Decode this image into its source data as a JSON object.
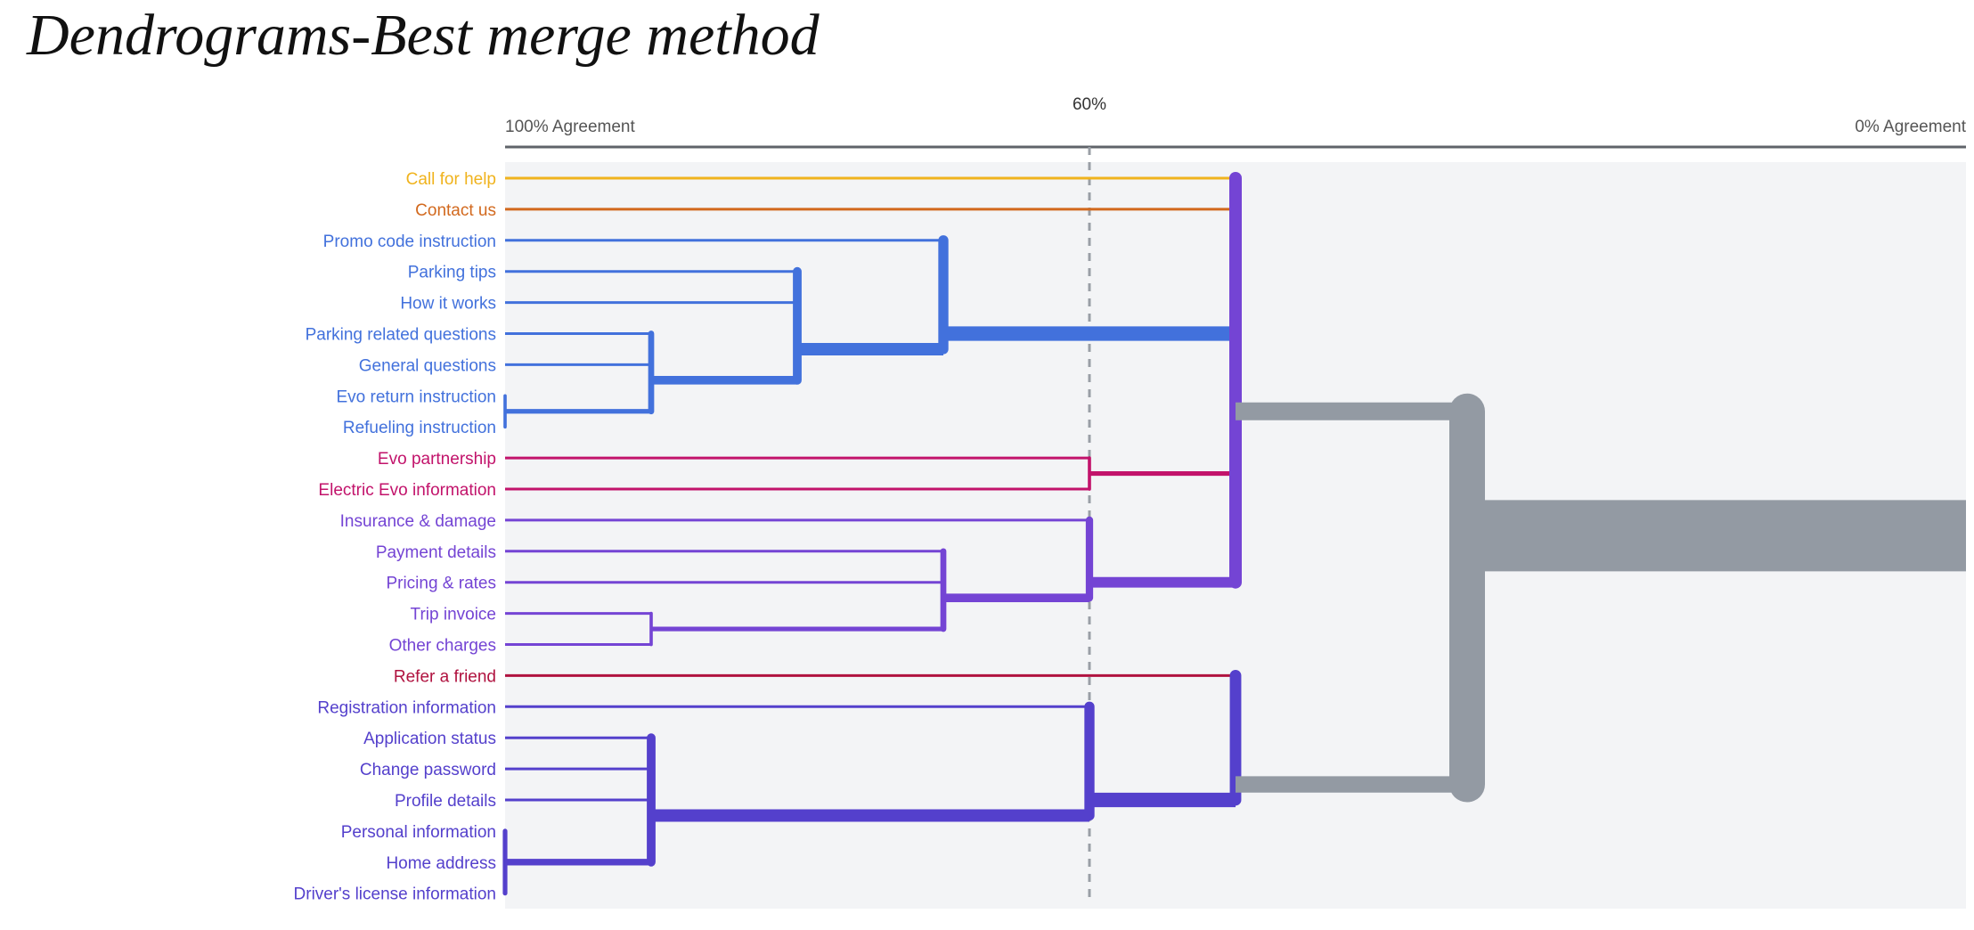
{
  "title": "Dendrograms-Best merge method",
  "axis": {
    "left_label": "100% Agreement",
    "right_label": "0% Agreement",
    "threshold_label": "60%",
    "threshold": 60
  },
  "colors": {
    "yellow": "#f0b31d",
    "orange": "#d2691e",
    "blue": "#4271dc",
    "magenta": "#c2136b",
    "purple": "#7444d4",
    "crimson": "#b0123f",
    "indigo": "#5440cc",
    "root": "#939aa3",
    "plot_bg": "#f3f4f6",
    "axis_line": "#5f646a",
    "axis_text": "#555555",
    "dash": "#9a9fa6"
  },
  "leaves": [
    {
      "label": "Call for help",
      "color": "yellow"
    },
    {
      "label": "Contact us",
      "color": "orange"
    },
    {
      "label": "Promo code instruction",
      "color": "blue"
    },
    {
      "label": "Parking tips",
      "color": "blue"
    },
    {
      "label": "How it works",
      "color": "blue"
    },
    {
      "label": "Parking related questions",
      "color": "blue"
    },
    {
      "label": "General questions",
      "color": "blue"
    },
    {
      "label": "Evo return instruction",
      "color": "blue"
    },
    {
      "label": "Refueling instruction",
      "color": "blue"
    },
    {
      "label": "Evo partnership",
      "color": "magenta"
    },
    {
      "label": "Electric Evo information",
      "color": "magenta"
    },
    {
      "label": "Insurance & damage",
      "color": "purple"
    },
    {
      "label": "Payment details",
      "color": "purple"
    },
    {
      "label": "Pricing & rates",
      "color": "purple"
    },
    {
      "label": "Trip invoice",
      "color": "purple"
    },
    {
      "label": "Other charges",
      "color": "purple"
    },
    {
      "label": "Refer a friend",
      "color": "crimson"
    },
    {
      "label": "Registration information",
      "color": "indigo"
    },
    {
      "label": "Application status",
      "color": "indigo"
    },
    {
      "label": "Change password",
      "color": "indigo"
    },
    {
      "label": "Profile details",
      "color": "indigo"
    },
    {
      "label": "Personal information",
      "color": "indigo"
    },
    {
      "label": "Home address",
      "color": "indigo"
    },
    {
      "label": "Driver's license information",
      "color": "indigo"
    }
  ],
  "merges": [
    {
      "id": "n_evo",
      "agreement": 100,
      "children": [
        7,
        8
      ],
      "color": "blue"
    },
    {
      "id": "n_park",
      "agreement": 90,
      "children": [
        5,
        6,
        "n_evo"
      ],
      "color": "blue"
    },
    {
      "id": "n_tips",
      "agreement": 80,
      "children": [
        3,
        4,
        "n_park"
      ],
      "color": "blue"
    },
    {
      "id": "n_promo",
      "agreement": 70,
      "children": [
        2,
        "n_tips"
      ],
      "color": "blue"
    },
    {
      "id": "n_partner",
      "agreement": 60,
      "children": [
        9,
        10
      ],
      "color": "magenta"
    },
    {
      "id": "n_trip",
      "agreement": 90,
      "children": [
        14,
        15
      ],
      "color": "purple"
    },
    {
      "id": "n_pay",
      "agreement": 70,
      "children": [
        12,
        13,
        "n_trip"
      ],
      "color": "purple"
    },
    {
      "id": "n_ins",
      "agreement": 60,
      "children": [
        11,
        "n_pay"
      ],
      "color": "purple"
    },
    {
      "id": "n_pers",
      "agreement": 100,
      "children": [
        21,
        22,
        23
      ],
      "color": "indigo"
    },
    {
      "id": "n_app",
      "agreement": 90,
      "children": [
        18,
        19,
        20,
        "n_pers"
      ],
      "color": "indigo"
    },
    {
      "id": "n_reg",
      "agreement": 60,
      "children": [
        17,
        "n_app"
      ],
      "color": "indigo"
    },
    {
      "id": "n_top",
      "agreement": 50,
      "children": [
        0,
        1,
        "n_promo",
        "n_partner",
        "n_ins"
      ],
      "color": "root"
    },
    {
      "id": "n_bottom",
      "agreement": 50,
      "children": [
        16,
        "n_reg"
      ],
      "color": "root"
    },
    {
      "id": "n_root",
      "agreement": 0,
      "children": [
        "n_top",
        "n_bottom"
      ],
      "color": "root"
    }
  ]
}
